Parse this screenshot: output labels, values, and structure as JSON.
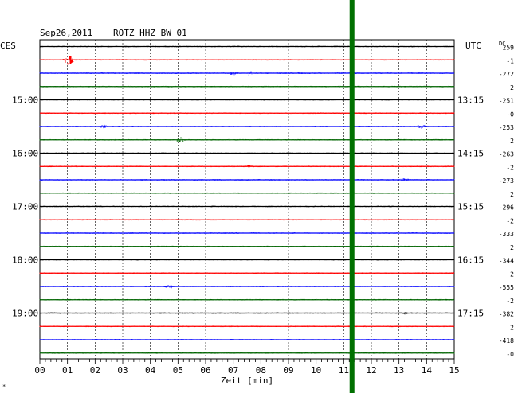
{
  "header": {
    "date": "Sep26,2011",
    "station": "ROTZ HHZ BW 01",
    "left_zone": "CES",
    "right_zone": "UTC",
    "dc_label": "DC"
  },
  "footer": {
    "xlabel": "Zeit [min]",
    "corner_mark": "*"
  },
  "chart_data": {
    "type": "line",
    "title": "Sep26,2011   ROTZ HHZ BW 01",
    "xlabel": "Zeit [min]",
    "xlim": [
      0,
      15
    ],
    "x_ticks": [
      "00",
      "01",
      "02",
      "03",
      "04",
      "05",
      "06",
      "07",
      "08",
      "09",
      "10",
      "11",
      "12",
      "13",
      "14",
      "15"
    ],
    "grid": true,
    "trace_colors": [
      "#000000",
      "#ff0000",
      "#0000ff",
      "#006400"
    ],
    "minutes_per_trace": 15,
    "left_time_labels": [
      "15:00",
      "16:00",
      "17:00",
      "18:00",
      "19:00"
    ],
    "right_time_labels": [
      "13:15",
      "14:15",
      "15:15",
      "16:15",
      "17:15"
    ],
    "time_label_rows": [
      4,
      8,
      12,
      16,
      20
    ],
    "dc_offsets": [
      "259",
      "-1",
      "-272",
      "2",
      "-251",
      "-0",
      "-253",
      "2",
      "-263",
      "-2",
      "-273",
      "2",
      "-296",
      "-2",
      "-333",
      "2",
      "-344",
      "2",
      "-555",
      "-2",
      "-382",
      "2",
      "-418",
      "-0"
    ],
    "traces": 24,
    "event_marker": {
      "minute": 11.3,
      "color": "#007000"
    },
    "events": [
      {
        "trace": 1,
        "minute": 1.05,
        "amplitude": 8
      },
      {
        "trace": 2,
        "minute": 7.0,
        "amplitude": 3
      },
      {
        "trace": 2,
        "minute": 7.6,
        "amplitude": 3
      },
      {
        "trace": 6,
        "minute": 2.3,
        "amplitude": 3
      },
      {
        "trace": 6,
        "minute": 13.8,
        "amplitude": 3
      },
      {
        "trace": 7,
        "minute": 5.1,
        "amplitude": 4
      },
      {
        "trace": 8,
        "minute": 4.5,
        "amplitude": 2
      },
      {
        "trace": 9,
        "minute": 7.6,
        "amplitude": 3
      },
      {
        "trace": 10,
        "minute": 13.2,
        "amplitude": 3
      },
      {
        "trace": 18,
        "minute": 4.7,
        "amplitude": 3
      },
      {
        "trace": 20,
        "minute": 13.2,
        "amplitude": 2
      }
    ]
  }
}
